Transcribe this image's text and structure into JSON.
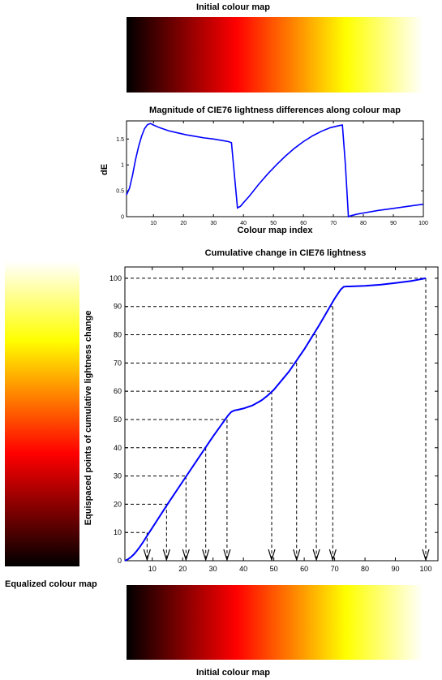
{
  "labels": {
    "top_colormap_title": "Initial colour map",
    "equalized_colormap": "Equalized colour map",
    "bottom_colormap_title": "Initial colour map"
  },
  "colormap": {
    "name": "hot",
    "stops": [
      "#000000",
      "#ff0000",
      "#ffff00",
      "#ffffff"
    ]
  },
  "chart_data": [
    {
      "type": "line",
      "title": "Magnitude of CIE76 lightness differences along colour map",
      "xlabel": "Colour map index",
      "ylabel": "dE",
      "xlim": [
        1,
        100
      ],
      "ylim": [
        0,
        1.85
      ],
      "xticks": [
        10,
        20,
        30,
        40,
        50,
        60,
        70,
        80,
        90,
        100
      ],
      "yticks": [
        0,
        0.5,
        1,
        1.5
      ],
      "ytick_labels": [
        "0",
        "0.5",
        "1",
        "1.5"
      ],
      "grid": false,
      "series": [
        {
          "color": "#0000ff",
          "x": [
            1,
            2,
            3,
            4,
            5,
            6,
            7,
            8,
            9,
            10,
            12,
            15,
            18,
            21,
            24,
            27,
            30,
            33,
            35,
            36,
            37,
            38,
            39,
            40,
            42,
            45,
            48,
            51,
            54,
            57,
            60,
            63,
            66,
            69,
            72,
            73,
            74,
            75,
            76,
            78,
            80,
            85,
            90,
            95,
            100
          ],
          "y": [
            0.42,
            0.55,
            0.8,
            1.1,
            1.35,
            1.55,
            1.7,
            1.78,
            1.8,
            1.77,
            1.72,
            1.66,
            1.62,
            1.58,
            1.55,
            1.52,
            1.5,
            1.47,
            1.45,
            1.43,
            0.8,
            0.17,
            0.2,
            0.27,
            0.4,
            0.62,
            0.82,
            1.0,
            1.17,
            1.32,
            1.45,
            1.56,
            1.65,
            1.72,
            1.76,
            1.77,
            1.0,
            0.0,
            0.02,
            0.05,
            0.07,
            0.12,
            0.16,
            0.2,
            0.24
          ]
        }
      ]
    },
    {
      "type": "line",
      "title": "Cumulative change in CIE76 lightness",
      "xlabel": "",
      "ylabel": "Equispaced points of cumulative lightness change",
      "xlim": [
        1,
        104
      ],
      "ylim": [
        0,
        104
      ],
      "xticks": [
        10,
        20,
        30,
        40,
        50,
        60,
        70,
        80,
        90,
        100
      ],
      "yticks": [
        0,
        10,
        20,
        30,
        40,
        50,
        60,
        70,
        80,
        90,
        100
      ],
      "grid": false,
      "series": [
        {
          "color": "#0000ff",
          "x": [
            1,
            2,
            3,
            4,
            5,
            6,
            7,
            8,
            9,
            10,
            15,
            20,
            25,
            30,
            33,
            35,
            36,
            37,
            38,
            40,
            43,
            46,
            48,
            50,
            55,
            60,
            65,
            70,
            72,
            73,
            74,
            75,
            80,
            85,
            90,
            95,
            100
          ],
          "y": [
            0,
            0.5,
            1.3,
            2.3,
            3.6,
            5.0,
            6.6,
            8.3,
            10.0,
            11.6,
            20.0,
            28.0,
            36.0,
            44.0,
            48.5,
            51.5,
            52.7,
            53.2,
            53.4,
            53.9,
            55.0,
            56.8,
            58.5,
            60.5,
            67.0,
            74.8,
            83.5,
            92.8,
            96.0,
            97.0,
            97.1,
            97.1,
            97.3,
            97.7,
            98.3,
            99.0,
            100.0
          ]
        }
      ],
      "equispaced_levels": [
        10,
        20,
        30,
        40,
        50,
        60,
        70,
        80,
        90,
        100
      ],
      "arrow_x": [
        8.3,
        14.7,
        21.1,
        27.6,
        34.6,
        49.3,
        57.5,
        64.0,
        69.4,
        100
      ]
    }
  ]
}
